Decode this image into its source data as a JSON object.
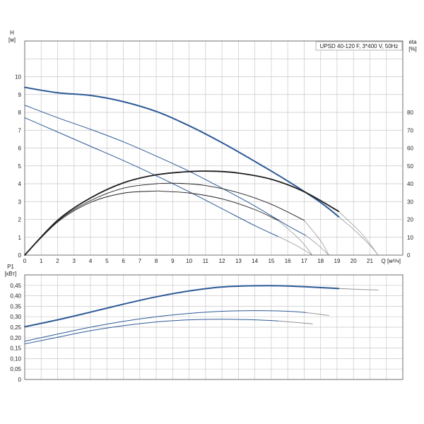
{
  "chart_data": [
    {
      "type": "line",
      "id": "head-efficiency",
      "legend": "UPSD 40-120 F, 3*400 V, 50Hz",
      "legend_placement": "top-right",
      "grid": true,
      "x": {
        "label": "Q [м³/ч]",
        "lim": [
          0,
          23
        ],
        "ticks": [
          0,
          1,
          2,
          3,
          4,
          5,
          6,
          7,
          8,
          9,
          10,
          11,
          12,
          13,
          14,
          15,
          16,
          17,
          18,
          19,
          20,
          21
        ]
      },
      "y_left": {
        "label": "H",
        "unit": "[м]",
        "lim": [
          0,
          12
        ],
        "ticks": [
          0,
          1,
          2,
          3,
          4,
          5,
          6,
          7,
          8,
          9,
          10
        ]
      },
      "y_right": {
        "label": "eta",
        "unit": "[%]",
        "lim": [
          0,
          120
        ],
        "ticks": [
          0,
          10,
          20,
          30,
          40,
          50,
          60,
          70,
          80
        ]
      },
      "head_series": [
        {
          "x": [
            0,
            2,
            4,
            6,
            8,
            10,
            12,
            14,
            16,
            18,
            19.1
          ],
          "y": [
            9.4,
            9.1,
            8.95,
            8.6,
            8.05,
            7.25,
            6.3,
            5.25,
            4.15,
            2.95,
            2.15
          ]
        },
        {
          "x": [
            0,
            2,
            4,
            6,
            8,
            10,
            12,
            14,
            16,
            17.1
          ],
          "y": [
            8.4,
            7.7,
            7.05,
            6.35,
            5.55,
            4.7,
            3.75,
            2.75,
            1.65,
            1.1
          ]
        },
        {
          "x": [
            0,
            2,
            4,
            6,
            8,
            10,
            12,
            14,
            15.4
          ],
          "y": [
            7.7,
            6.9,
            6.1,
            5.3,
            4.45,
            3.55,
            2.6,
            1.65,
            1.05
          ]
        }
      ],
      "head_extension_series": [
        {
          "x": [
            19.1,
            20,
            21,
            21.5
          ],
          "y": [
            2.15,
            1.45,
            0.55,
            0
          ]
        },
        {
          "x": [
            17.1,
            17.8,
            18.5
          ],
          "y": [
            1.1,
            0.6,
            0
          ]
        },
        {
          "x": [
            15.4,
            16.5,
            17.5
          ],
          "y": [
            1.05,
            0.55,
            0
          ]
        }
      ],
      "efficiency_series": [
        {
          "x": [
            0,
            2,
            4,
            6,
            8,
            10,
            11.5,
            13,
            15,
            17,
            19.1
          ],
          "y": [
            0,
            19.5,
            32,
            40.5,
            45,
            46.8,
            47,
            46,
            42.5,
            35.5,
            24.5
          ]
        },
        {
          "x": [
            0,
            2,
            4,
            6,
            8,
            9.5,
            11,
            13,
            15,
            17
          ],
          "y": [
            0,
            19,
            30.5,
            37.5,
            40,
            40.2,
            39,
            35,
            28.5,
            19.5
          ]
        },
        {
          "x": [
            0,
            2,
            4,
            6,
            8,
            8.3,
            10,
            12,
            14,
            15.4
          ],
          "y": [
            0,
            18.5,
            29.5,
            34.7,
            35.9,
            35.8,
            34.8,
            31.5,
            25.5,
            19.5
          ]
        }
      ],
      "efficiency_extension_series": [
        {
          "x": [
            19.1,
            20.5,
            21.5
          ],
          "y": [
            24.5,
            12,
            0
          ]
        },
        {
          "x": [
            17,
            18,
            18.5
          ],
          "y": [
            19.5,
            8,
            0
          ]
        },
        {
          "x": [
            15.4,
            16.7,
            17.5
          ],
          "y": [
            19.5,
            9,
            0
          ]
        }
      ]
    },
    {
      "type": "line",
      "id": "power",
      "grid": true,
      "x": {
        "lim": [
          0,
          23
        ]
      },
      "y": {
        "label": "P1",
        "unit": "[кВт]",
        "lim": [
          0,
          0.5
        ],
        "ticks": [
          0,
          0.05,
          0.1,
          0.15,
          0.2,
          0.25,
          0.3,
          0.35,
          0.4,
          0.45
        ],
        "tick_labels": [
          "0",
          "0,05",
          "0,10",
          "0,15",
          "0,20",
          "0,25",
          "0,30",
          "0,35",
          "0,40",
          "0,45"
        ]
      },
      "series": [
        {
          "x": [
            0,
            2,
            4,
            6,
            8,
            10,
            12,
            14,
            16,
            19.1
          ],
          "y": [
            0.252,
            0.285,
            0.322,
            0.36,
            0.395,
            0.423,
            0.442,
            0.448,
            0.447,
            0.435
          ]
        },
        {
          "x": [
            0,
            2,
            4,
            6,
            8,
            10,
            12,
            14,
            16,
            17.1
          ],
          "y": [
            0.183,
            0.217,
            0.25,
            0.278,
            0.3,
            0.316,
            0.326,
            0.329,
            0.326,
            0.32
          ]
        },
        {
          "x": [
            0,
            2,
            4,
            6,
            8,
            10,
            12,
            14,
            15.4
          ],
          "y": [
            0.17,
            0.202,
            0.233,
            0.257,
            0.275,
            0.285,
            0.288,
            0.285,
            0.28
          ]
        }
      ],
      "extension_series": [
        {
          "x": [
            19.1,
            20.5,
            21.5
          ],
          "y": [
            0.435,
            0.43,
            0.428
          ]
        },
        {
          "x": [
            17.1,
            18.5
          ],
          "y": [
            0.32,
            0.306
          ]
        },
        {
          "x": [
            15.4,
            17.5
          ],
          "y": [
            0.28,
            0.266
          ]
        }
      ]
    }
  ]
}
